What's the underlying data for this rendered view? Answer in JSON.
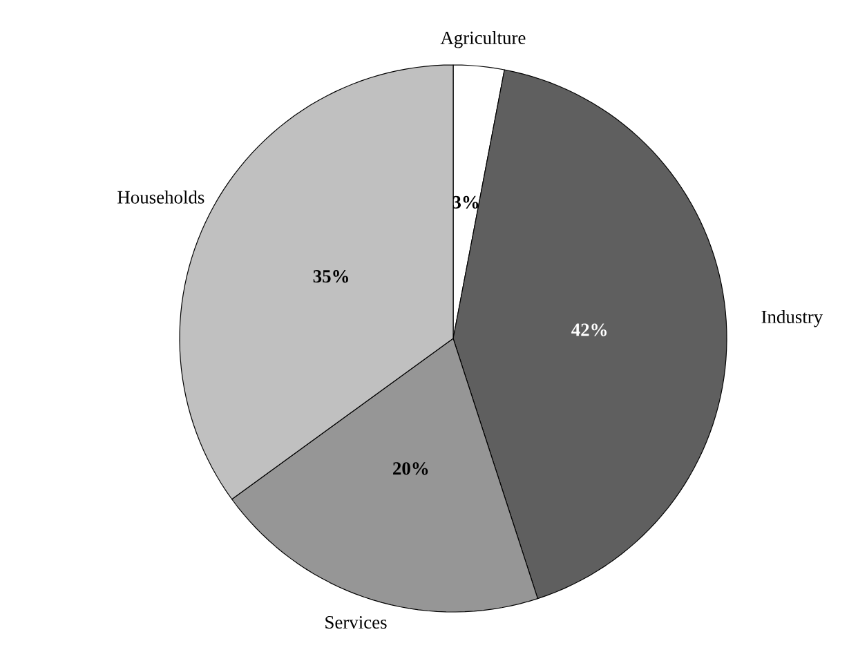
{
  "chart_data": {
    "type": "pie",
    "categories": [
      "Agriculture",
      "Industry",
      "Services",
      "Households"
    ],
    "values": [
      3,
      42,
      20,
      35
    ],
    "colors": [
      "#ffffff",
      "#5f5f5f",
      "#969696",
      "#c0c0c0"
    ],
    "value_labels": [
      "3%",
      "42%",
      "20%",
      "35%"
    ]
  }
}
